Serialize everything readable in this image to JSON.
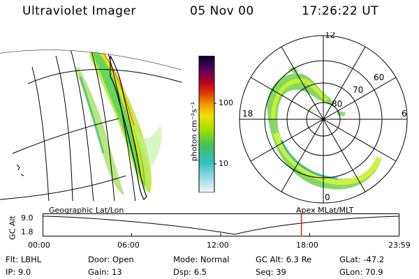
{
  "header": {
    "instrument": "Ultraviolet Imager",
    "date": "05 Nov 00",
    "time": "17:26:22 UT"
  },
  "colorbar": {
    "label": "photon cm⁻²s⁻¹",
    "ticks": [
      "100",
      "10"
    ],
    "colors": [
      "#000033",
      "#2a0050",
      "#5a0060",
      "#8a0040",
      "#c00020",
      "#e04000",
      "#f08000",
      "#f0b000",
      "#f0e000",
      "#d8f000",
      "#a0e000",
      "#60d040",
      "#30c080",
      "#30c0c0",
      "#90d8e0",
      "#f0f0f0"
    ]
  },
  "geo_panel": {
    "caption": "Geographic Lat/Lon"
  },
  "polar_panel": {
    "caption": "Apex MLat/MLT",
    "mlt_labels": {
      "top": "12",
      "left": "18",
      "right": "6",
      "bottom": "0"
    },
    "lat_labels": [
      "60",
      "70",
      "80"
    ]
  },
  "altitude_plot": {
    "ylabel": "GC Alt",
    "yticks": [
      "9.0",
      "1.8"
    ],
    "xticks": [
      "00:00",
      "06:00",
      "12:00",
      "18:00",
      "23:59"
    ],
    "current_marker_hour": 17.44
  },
  "info": {
    "flt_label": "Flt:",
    "flt_value": "LBHL",
    "door_label": "Door:",
    "door_value": "Open",
    "mode_label": "Mode:",
    "mode_value": "Normal",
    "gcalt_label": "GC Alt:",
    "gcalt_value": "6.3 Re",
    "glat_label": "GLat:",
    "glat_value": "-47.2",
    "ip_label": "IP:",
    "ip_value": "9.0",
    "gain_label": "Gain:",
    "gain_value": "13",
    "dsp_label": "Dsp:",
    "dsp_value": "6.5",
    "seq_label": "Seq:",
    "seq_value": "39",
    "glon_label": "GLon:",
    "glon_value": "70.9"
  }
}
